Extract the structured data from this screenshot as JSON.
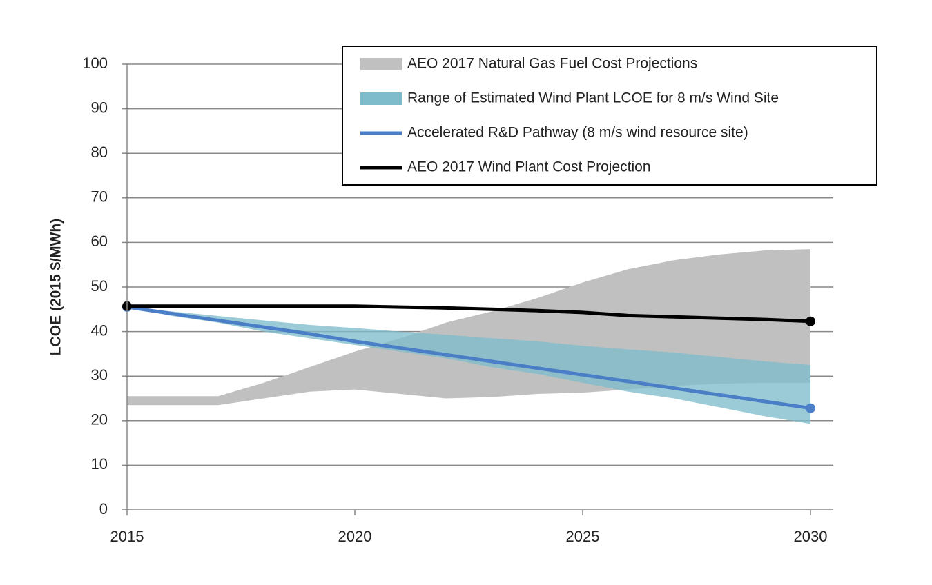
{
  "chart_data": {
    "type": "line",
    "y_label": "LCOE (2015 $/MWh)",
    "x": [
      2015,
      2016,
      2017,
      2018,
      2019,
      2020,
      2021,
      2022,
      2023,
      2024,
      2025,
      2026,
      2027,
      2028,
      2029,
      2030
    ],
    "xlim": [
      2015,
      2030.5
    ],
    "xticks": [
      2015,
      2020,
      2025,
      2030
    ],
    "ylim": [
      0,
      100
    ],
    "yticks": [
      0,
      10,
      20,
      30,
      40,
      50,
      60,
      70,
      80,
      90,
      100
    ],
    "grid": true,
    "series": [
      {
        "name": "AEO 2017 Natural Gas Fuel Cost Projections",
        "kind": "band",
        "color": "#c0c0c0",
        "low": [
          23.5,
          23.5,
          23.5,
          25,
          26.5,
          27,
          26,
          25,
          25.3,
          26,
          26.3,
          27,
          27.8,
          28.3,
          28.5,
          28.5
        ],
        "high": [
          25.5,
          25.5,
          25.5,
          28.5,
          32,
          35.5,
          38.5,
          42,
          44.5,
          47.5,
          51,
          54,
          56,
          57.3,
          58.2,
          58.5
        ]
      },
      {
        "name": "Range of Estimated Wind Plant LCOE for 8 m/s Wind Site",
        "kind": "band",
        "color": "#7fbccb",
        "low": [
          45.5,
          43.5,
          42,
          40,
          38.5,
          37,
          35.5,
          34,
          32,
          30.5,
          28.5,
          26.5,
          25,
          23,
          21,
          19.3
        ],
        "high": [
          45.5,
          44.5,
          43.5,
          42.5,
          41.5,
          40.8,
          40,
          39.3,
          38.5,
          37.8,
          36.8,
          36,
          35.3,
          34.3,
          33.3,
          32.5
        ]
      },
      {
        "name": "Accelerated R&D Pathway (8 m/s wind resource site)",
        "kind": "line",
        "color": "#4a7ec6",
        "end_markers": true,
        "values": [
          45.5,
          44,
          42.5,
          41,
          39.5,
          37.8,
          36.3,
          34.8,
          33.3,
          31.8,
          30.3,
          28.8,
          27.3,
          25.8,
          24.3,
          22.8
        ]
      },
      {
        "name": "AEO 2017 Wind Plant Cost Projection",
        "kind": "line",
        "color": "#000000",
        "end_markers": true,
        "values": [
          45.7,
          45.7,
          45.7,
          45.7,
          45.7,
          45.7,
          45.5,
          45.3,
          45.0,
          44.7,
          44.3,
          43.6,
          43.3,
          43.0,
          42.7,
          42.3
        ]
      }
    ]
  }
}
